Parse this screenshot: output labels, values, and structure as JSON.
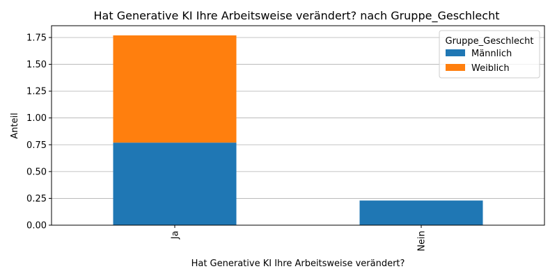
{
  "chart_data": {
    "type": "bar",
    "stacked": true,
    "title": "Hat Generative KI Ihre Arbeitsweise verändert? nach Gruppe_Geschlecht",
    "xlabel": "Hat Generative KI Ihre Arbeitsweise verändert?",
    "ylabel": "Anteil",
    "categories": [
      "Ja",
      "Nein"
    ],
    "series": [
      {
        "name": "Männlich",
        "values": [
          0.77,
          0.23
        ],
        "color": "#1f77b4"
      },
      {
        "name": "Weiblich",
        "values": [
          1.0,
          0.0
        ],
        "color": "#ff7f0e"
      }
    ],
    "ylim": [
      0,
      1.86
    ],
    "yticks": [
      0.0,
      0.25,
      0.5,
      0.75,
      1.0,
      1.25,
      1.5,
      1.75
    ],
    "ytick_labels": [
      "0.00",
      "0.25",
      "0.50",
      "0.75",
      "1.00",
      "1.25",
      "1.50",
      "1.75"
    ],
    "grid": "y",
    "legend": {
      "title": "Gruppe_Geschlecht",
      "placement": "top-right"
    }
  }
}
